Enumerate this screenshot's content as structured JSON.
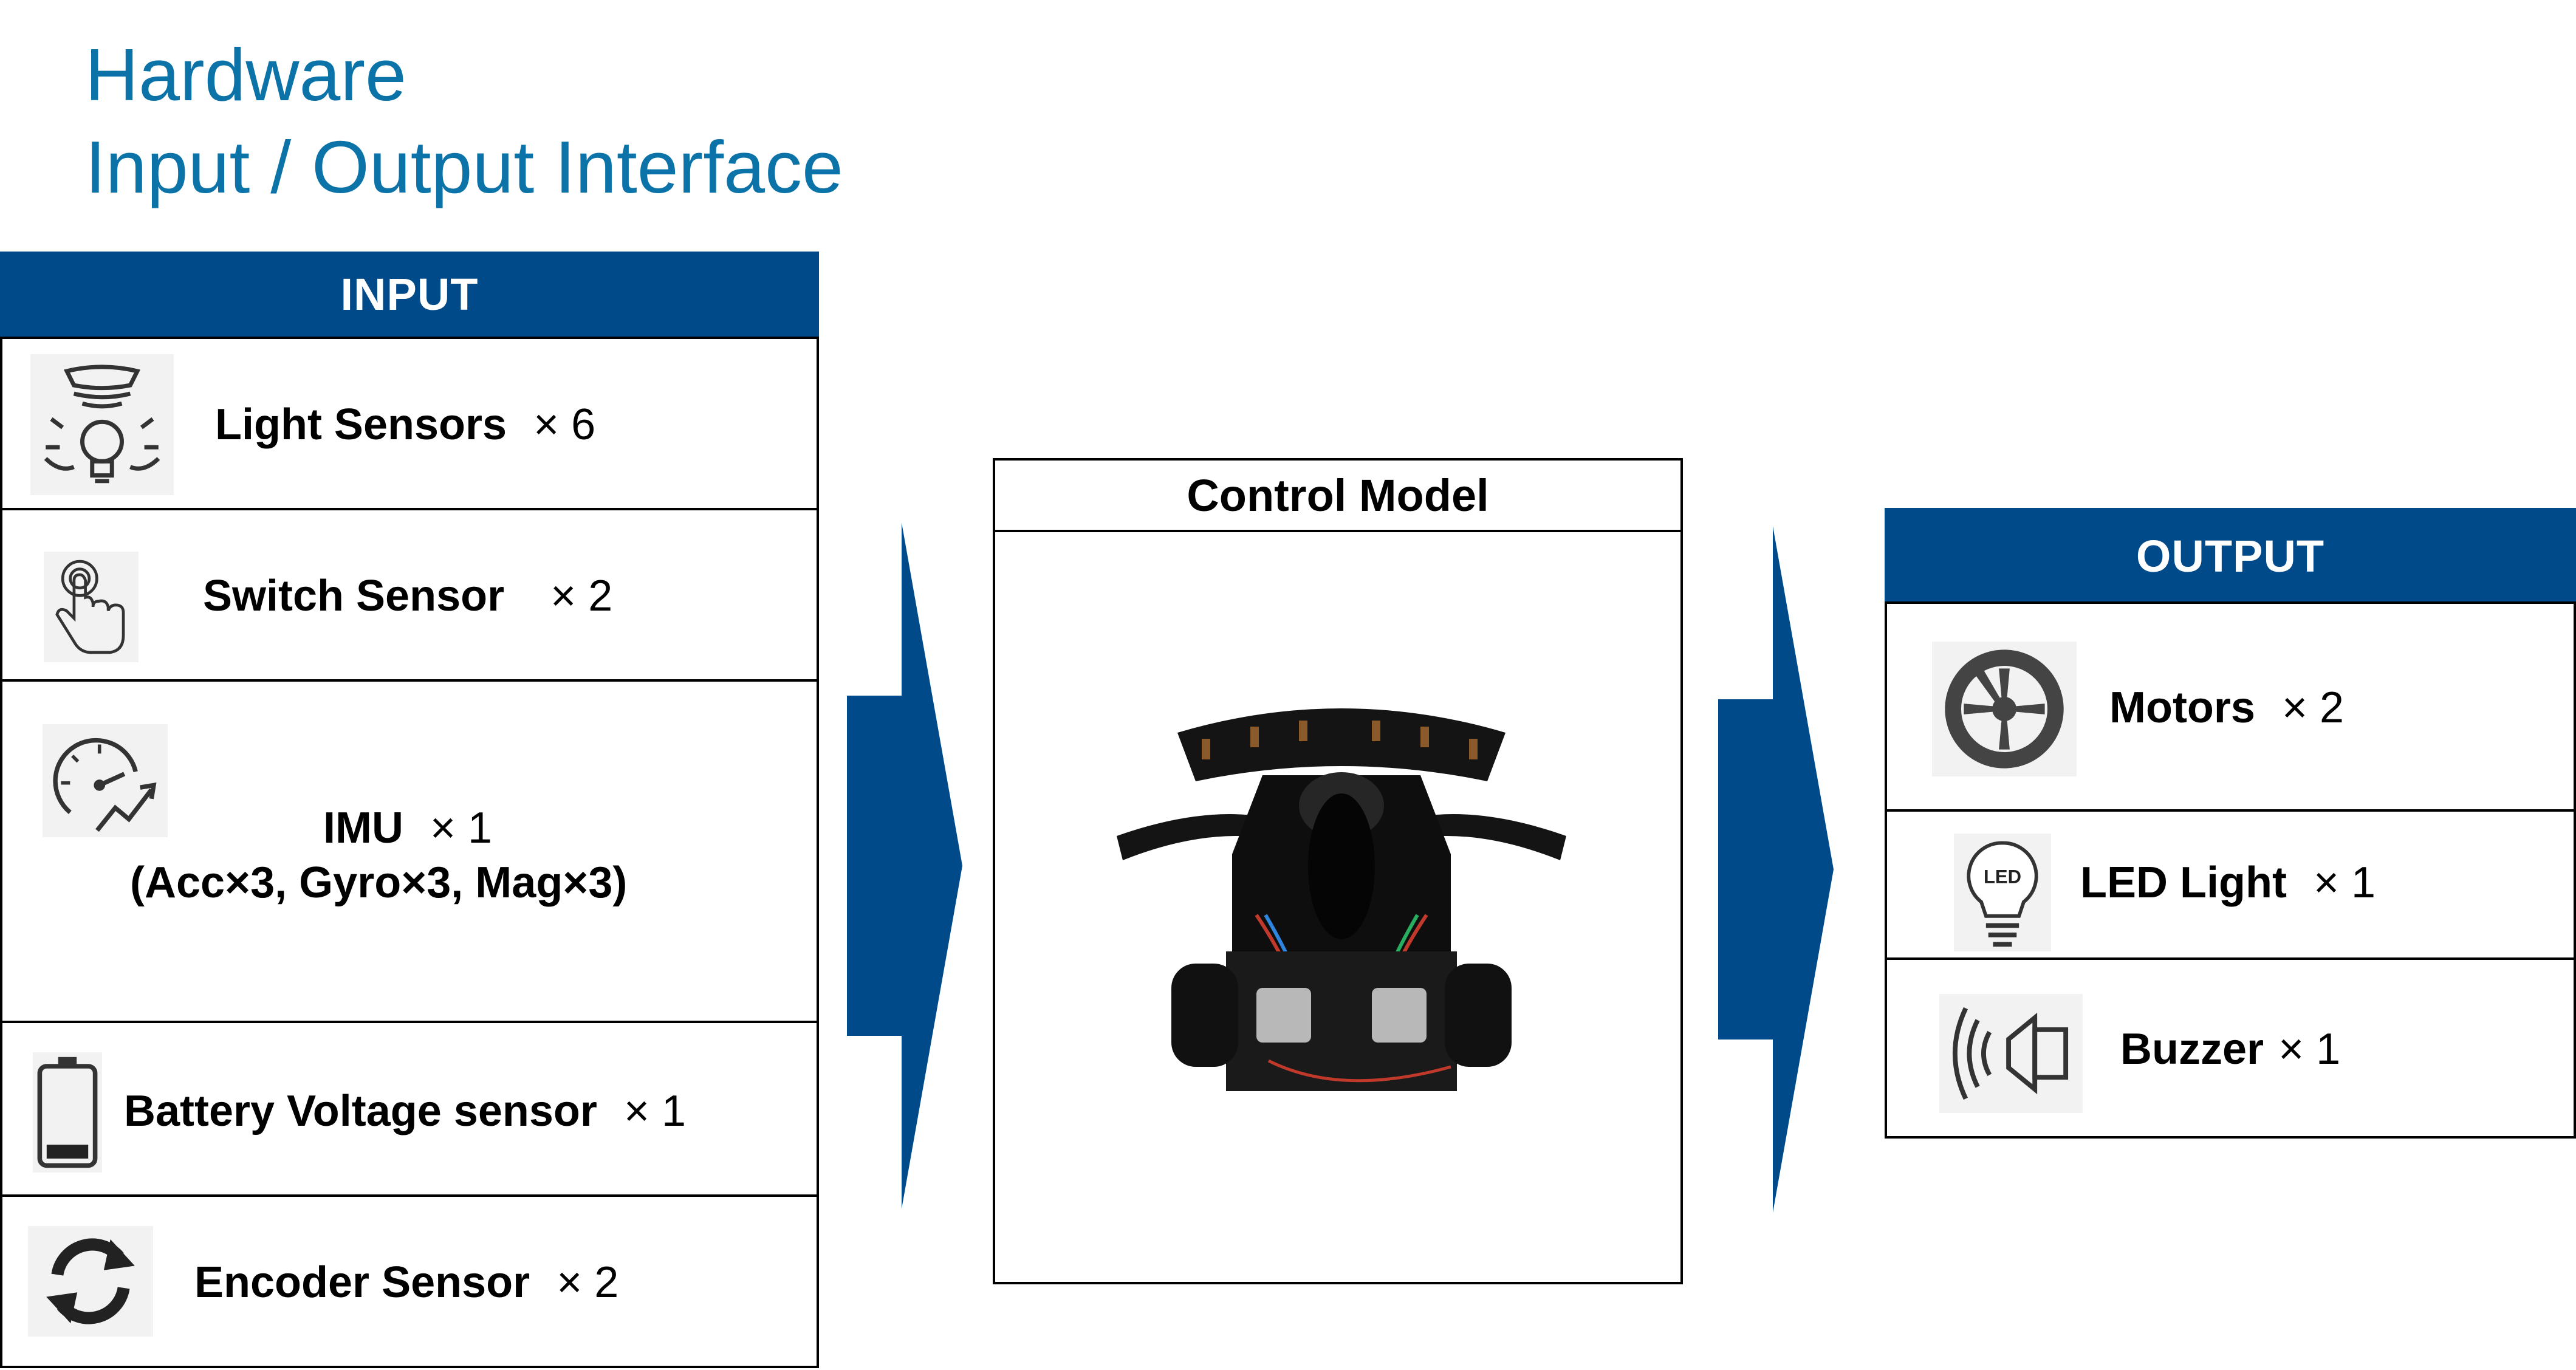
{
  "title": {
    "line1": "Hardware",
    "line2": "Input / Output Interface"
  },
  "input": {
    "header": "INPUT",
    "items": [
      {
        "label": "Light Sensors",
        "qty": "× 6",
        "icon": "light-sensor-icon"
      },
      {
        "label": "Switch Sensor",
        "qty": "× 2",
        "icon": "touch-switch-icon"
      },
      {
        "label": "IMU",
        "qty": "× 1",
        "detail": "(Acc×3, Gyro×3, Mag×3)",
        "icon": "imu-gauge-icon"
      },
      {
        "label": "Battery Voltage sensor",
        "qty": "× 1",
        "icon": "battery-icon"
      },
      {
        "label": "Encoder Sensor",
        "qty": "× 2",
        "icon": "encoder-rotation-icon"
      }
    ]
  },
  "control": {
    "title": "Control Model",
    "image": "robot-board-photo"
  },
  "output": {
    "header": "OUTPUT",
    "items": [
      {
        "label": "Motors",
        "qty": "× 2",
        "icon": "wheel-icon"
      },
      {
        "label": "LED Light",
        "qty": "× 1",
        "icon": "led-bulb-icon",
        "icon_text": "LED"
      },
      {
        "label": "Buzzer",
        "qty": "× 1",
        "icon": "speaker-icon"
      }
    ]
  },
  "colors": {
    "title": "#0B73A8",
    "header": "#014A8A",
    "arrow": "#014A8A"
  }
}
